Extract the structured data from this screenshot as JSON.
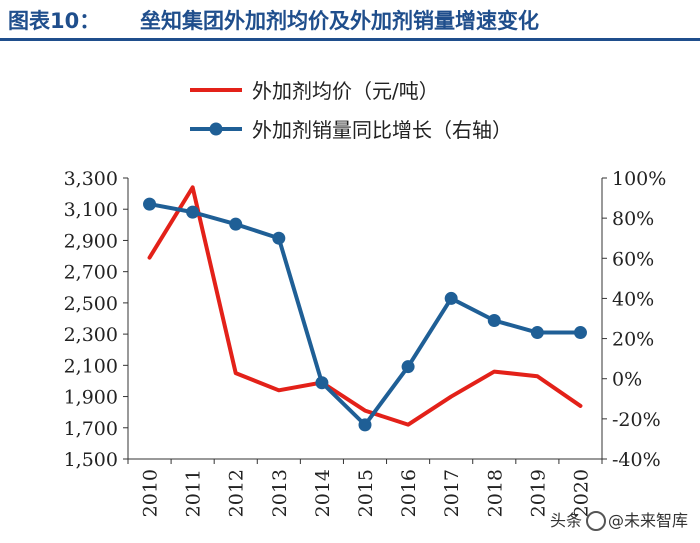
{
  "header": {
    "figure_no": "图表10：",
    "title": "垒知集团外加剂均价及外加剂销量增速变化"
  },
  "watermark": {
    "prefix": "头条",
    "handle": "@未来智库"
  },
  "colors": {
    "header": "#1f4e8c",
    "price_series": "#e32119",
    "growth_series": "#1f5f96",
    "axis": "#333333"
  },
  "chart_data": {
    "type": "line",
    "categories": [
      "2010",
      "2011",
      "2012",
      "2013",
      "2014",
      "2015",
      "2016",
      "2017",
      "2018",
      "2019",
      "2020"
    ],
    "legend": {
      "placement": "top"
    },
    "left_axis": {
      "ylim": [
        1500,
        3300
      ],
      "ticks": [
        1500,
        1700,
        1900,
        2100,
        2300,
        2500,
        2700,
        2900,
        3100,
        3300
      ],
      "tick_labels": [
        "1,500",
        "1,700",
        "1,900",
        "2,100",
        "2,300",
        "2,500",
        "2,700",
        "2,900",
        "3,100",
        "3,300"
      ]
    },
    "right_axis": {
      "ylim": [
        -40,
        100
      ],
      "ticks": [
        -40,
        -20,
        0,
        20,
        40,
        60,
        80,
        100
      ],
      "tick_labels": [
        "-40%",
        "-20%",
        "0%",
        "20%",
        "40%",
        "60%",
        "80%",
        "100%"
      ]
    },
    "series": [
      {
        "name": "外加剂均价（元/吨）",
        "axis": "left",
        "marker": false,
        "values": [
          2790,
          3240,
          2050,
          1940,
          1990,
          1810,
          1720,
          1900,
          2060,
          2030,
          1840
        ]
      },
      {
        "name": "外加剂销量同比增长（右轴）",
        "axis": "right",
        "marker": true,
        "values": [
          87,
          83,
          77,
          70,
          -2,
          -23,
          6,
          40,
          29,
          23,
          23
        ]
      }
    ],
    "grid": false
  }
}
